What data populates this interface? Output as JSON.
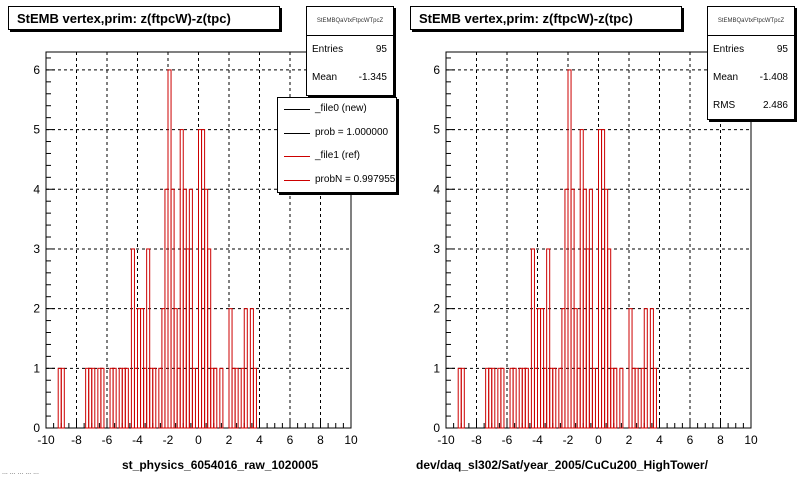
{
  "colors": {
    "new": "#000000",
    "ref": "#cc0000",
    "grid": "#000000"
  },
  "panels": [
    {
      "title": "StEMB  vertex,prim: z(ftpcW)-z(tpc)",
      "stats": {
        "name": "StEMBQaVtxFtpcWTpcZ",
        "rows": [
          {
            "k": "Entries",
            "v": "95"
          },
          {
            "k": "Mean",
            "v": "-1.345"
          }
        ]
      },
      "xlabel": "st_physics_6054016_raw_1020005"
    },
    {
      "title": "StEMB  vertex,prim: z(ftpcW)-z(tpc)",
      "stats": {
        "name": "StEMBQaVtxFtpcWTpcZ",
        "rows": [
          {
            "k": "Entries",
            "v": "95"
          },
          {
            "k": "Mean",
            "v": "-1.408"
          },
          {
            "k": "RMS",
            "v": "2.486"
          }
        ]
      },
      "xlabel": "dev/daq_sl302/Sat/year_2005/CuCu200_HighTower/"
    }
  ],
  "legend": [
    {
      "label": "_file0 (new)",
      "color": "#000000"
    },
    {
      "label": "prob = 1.000000",
      "color": "#000000"
    },
    {
      "label": "_file1 (ref)",
      "color": "#cc0000"
    },
    {
      "label": "probN = 0.997955",
      "color": "#cc0000"
    }
  ],
  "footer": "... ... ... ... ...",
  "chart_data": [
    {
      "type": "bar",
      "style": "step-histogram",
      "title": "StEMB  vertex,prim: z(ftpcW)-z(tpc)",
      "xlabel": "st_physics_6054016_raw_1020005",
      "ylabel": "",
      "xlim": [
        -10,
        10
      ],
      "ylim": [
        0,
        6.3
      ],
      "xticks": [
        -10,
        -8,
        -6,
        -4,
        -2,
        0,
        2,
        4,
        6,
        8,
        10
      ],
      "yticks": [
        0,
        1,
        2,
        3,
        4,
        5,
        6
      ],
      "grid": true,
      "legend_position": "top-right",
      "bin_width": 0.2,
      "series": [
        {
          "name": "_file1 (ref)",
          "color": "#cc0000",
          "x": [
            -9.1,
            -8.9,
            -7.5,
            -7.3,
            -7.1,
            -6.9,
            -6.7,
            -6.5,
            -6.3,
            -5.9,
            -5.7,
            -5.5,
            -5.3,
            -5.1,
            -4.9,
            -4.7,
            -4.5,
            -4.3,
            -4.1,
            -3.9,
            -3.7,
            -3.5,
            -3.3,
            -3.1,
            -2.9,
            -2.7,
            -2.5,
            -2.3,
            -2.1,
            -1.9,
            -1.7,
            -1.5,
            -1.3,
            -1.1,
            -0.9,
            -0.7,
            -0.5,
            -0.3,
            -0.1,
            0.1,
            0.3,
            0.5,
            0.7,
            0.9,
            1.1,
            1.3,
            1.5,
            1.7,
            1.9,
            2.1,
            2.3,
            2.5,
            2.7,
            2.9,
            3.1,
            3.3,
            3.5,
            3.7,
            3.9
          ],
          "y": [
            1,
            1,
            0,
            1,
            1,
            1,
            0,
            1,
            1,
            0,
            1,
            1,
            0,
            1,
            1,
            1,
            0,
            3,
            1,
            2,
            2,
            1,
            3,
            1,
            1,
            0,
            1,
            2,
            4,
            6,
            4,
            2,
            1,
            5,
            4,
            3,
            4,
            1,
            0,
            5,
            5,
            4,
            3,
            1,
            1,
            0,
            1,
            0,
            0,
            2,
            1,
            1,
            0,
            1,
            2,
            0,
            2,
            1,
            0
          ]
        }
      ]
    },
    {
      "type": "bar",
      "style": "step-histogram",
      "title": "StEMB  vertex,prim: z(ftpcW)-z(tpc)",
      "xlabel": "dev/daq_sl302/Sat/year_2005/CuCu200_HighTower/",
      "ylabel": "",
      "xlim": [
        -10,
        10
      ],
      "ylim": [
        0,
        6.3
      ],
      "xticks": [
        -10,
        -8,
        -6,
        -4,
        -2,
        0,
        2,
        4,
        6,
        8,
        10
      ],
      "yticks": [
        0,
        1,
        2,
        3,
        4,
        5,
        6
      ],
      "grid": true,
      "bin_width": 0.2,
      "series": [
        {
          "name": "_file1 (ref)",
          "color": "#cc0000",
          "x": [
            -9.1,
            -8.9,
            -7.5,
            -7.3,
            -7.1,
            -6.9,
            -6.7,
            -6.5,
            -6.3,
            -5.9,
            -5.7,
            -5.5,
            -5.3,
            -5.1,
            -4.9,
            -4.7,
            -4.5,
            -4.3,
            -4.1,
            -3.9,
            -3.7,
            -3.5,
            -3.3,
            -3.1,
            -2.9,
            -2.7,
            -2.5,
            -2.3,
            -2.1,
            -1.9,
            -1.7,
            -1.5,
            -1.3,
            -1.1,
            -0.9,
            -0.7,
            -0.5,
            -0.3,
            -0.1,
            0.1,
            0.3,
            0.5,
            0.7,
            0.9,
            1.1,
            1.3,
            1.5,
            1.7,
            1.9,
            2.1,
            2.3,
            2.5,
            2.7,
            2.9,
            3.1,
            3.3,
            3.5,
            3.7,
            3.9
          ],
          "y": [
            1,
            1,
            0,
            1,
            1,
            1,
            0,
            1,
            1,
            0,
            1,
            1,
            0,
            1,
            1,
            1,
            0,
            3,
            1,
            2,
            2,
            1,
            3,
            1,
            1,
            0,
            1,
            2,
            4,
            6,
            4,
            2,
            1,
            5,
            4,
            3,
            4,
            1,
            0,
            5,
            5,
            4,
            3,
            1,
            1,
            0,
            1,
            0,
            0,
            2,
            1,
            1,
            0,
            1,
            2,
            0,
            2,
            1,
            0
          ]
        }
      ]
    }
  ]
}
